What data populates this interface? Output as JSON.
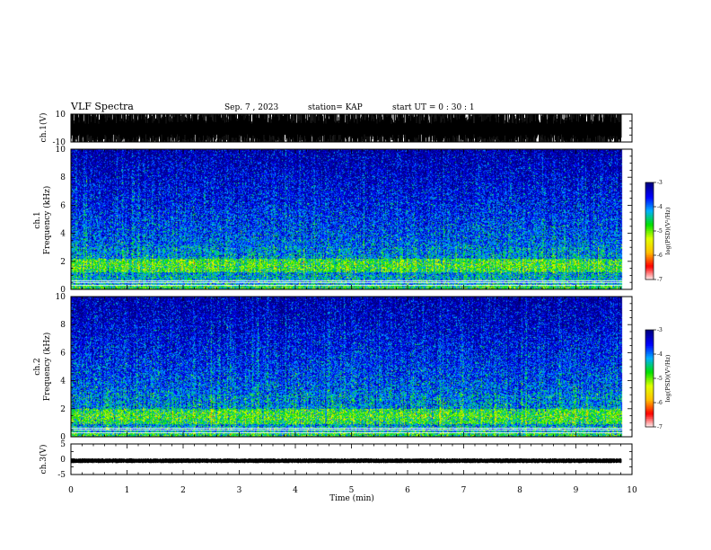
{
  "header": {
    "title": "VLF Spectra",
    "date": "Sep. 7 , 2023",
    "station": "station= KAP",
    "start": "start UT =  0 : 30 : 1"
  },
  "chart_data": [
    {
      "type": "line",
      "name": "ch1-waveform",
      "ylabel": "ch.1(V)",
      "ylim": [
        -10,
        10
      ],
      "y_ticks": [
        "10",
        "-10"
      ],
      "x_range_min": [
        0,
        9.82
      ],
      "amplitude_range_V": [
        -10,
        10
      ]
    },
    {
      "type": "heatmap",
      "name": "ch1-spectrogram",
      "ylabel_lines": [
        "ch.1",
        "Frequency (kHz)"
      ],
      "ylim": [
        0,
        10
      ],
      "y_ticks": [
        "0",
        "2",
        "4",
        "6",
        "8",
        "10"
      ],
      "x_range_min": [
        0,
        9.82
      ],
      "intense_band_kHz": [
        1.0,
        3.0
      ],
      "peak_band_kHz": [
        1.2,
        2.2
      ],
      "colorbar": {
        "label": "log(PSD)(V²/Hz)",
        "range": [
          -7,
          -3
        ],
        "ticks": [
          "-3",
          "-4",
          "-5",
          "-6",
          "-7"
        ]
      }
    },
    {
      "type": "heatmap",
      "name": "ch2-spectrogram",
      "ylabel_lines": [
        "ch.2",
        "Frequency (kHz)"
      ],
      "ylim": [
        0,
        10
      ],
      "y_ticks": [
        "0",
        "2",
        "4",
        "6",
        "8",
        "10"
      ],
      "x_range_min": [
        0,
        9.82
      ],
      "intense_band_kHz": [
        0.8,
        3.0
      ],
      "peak_band_kHz": [
        0.9,
        2.0
      ],
      "colorbar": {
        "label": "log(PSD)(V²/Hz)",
        "range": [
          -7,
          -3
        ],
        "ticks": [
          "-3",
          "-4",
          "-5",
          "-6",
          "-7"
        ]
      }
    },
    {
      "type": "line",
      "name": "ch3-waveform",
      "ylabel": "ch.3(V)",
      "ylim": [
        -5,
        5
      ],
      "y_ticks": [
        "5",
        "0",
        "-5"
      ],
      "x_range_min": [
        0,
        9.82
      ],
      "amplitude_range_V": [
        -1.3,
        0.3
      ]
    }
  ],
  "xaxis": {
    "label": "Time (min)",
    "range": [
      0,
      10
    ],
    "ticks": [
      "0",
      "1",
      "2",
      "3",
      "4",
      "5",
      "6",
      "7",
      "8",
      "9",
      "10"
    ]
  },
  "colors": {
    "colormap": [
      "#000080",
      "#0000ff",
      "#00b0ff",
      "#00e000",
      "#e0ff00",
      "#ffc000",
      "#ff0000",
      "#ffffff"
    ],
    "trace": "#000000"
  }
}
